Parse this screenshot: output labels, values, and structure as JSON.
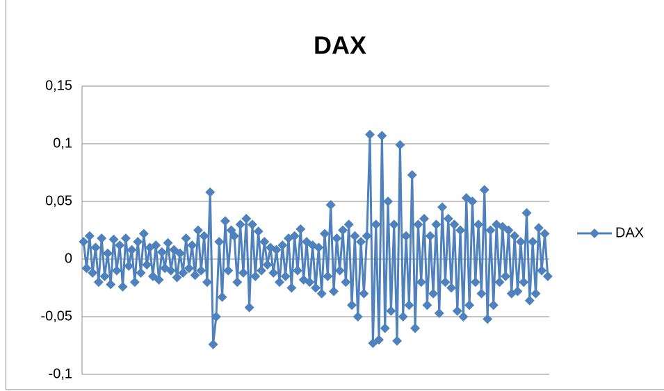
{
  "chart_data": {
    "type": "line",
    "title": "DAX",
    "ylim": [
      -0.1,
      0.15
    ],
    "yticks": [
      {
        "value": -0.1,
        "label": "-0,1"
      },
      {
        "value": -0.05,
        "label": "-0,05"
      },
      0,
      {
        "value": 0.05,
        "label": "0,05"
      },
      {
        "value": 0.1,
        "label": "0,1"
      },
      {
        "value": 0.15,
        "label": "0,15"
      }
    ],
    "grid": true,
    "legend": "right",
    "series": [
      {
        "name": "DAX",
        "color": "#4f81bd",
        "values": [
          0.015,
          -0.008,
          0.02,
          -0.012,
          0.01,
          -0.02,
          0.018,
          -0.015,
          0.005,
          -0.022,
          0.017,
          -0.01,
          0.012,
          -0.024,
          0.018,
          -0.006,
          0.008,
          -0.02,
          0.015,
          -0.012,
          0.022,
          -0.005,
          0.01,
          -0.015,
          0.012,
          -0.018,
          0.006,
          -0.008,
          0.014,
          -0.01,
          0.008,
          -0.016,
          0.005,
          -0.012,
          0.018,
          -0.008,
          0.012,
          -0.014,
          0.025,
          -0.01,
          0.02,
          -0.02,
          0.058,
          -0.074,
          -0.05,
          0.015,
          -0.033,
          0.033,
          -0.01,
          0.025,
          0.02,
          -0.02,
          0.03,
          -0.012,
          0.035,
          -0.042,
          0.03,
          -0.015,
          0.024,
          -0.01,
          0.015,
          -0.005,
          0.01,
          -0.012,
          0.008,
          -0.02,
          0.012,
          -0.015,
          0.018,
          -0.025,
          0.02,
          -0.01,
          0.026,
          -0.018,
          0.015,
          -0.02,
          0.012,
          -0.025,
          0.01,
          -0.03,
          0.022,
          -0.015,
          0.047,
          -0.028,
          0.018,
          -0.01,
          0.025,
          -0.02,
          0.03,
          -0.04,
          0.02,
          -0.05,
          0.015,
          -0.03,
          0.02,
          0.108,
          -0.073,
          0.03,
          -0.07,
          0.107,
          -0.06,
          0.05,
          -0.045,
          0.03,
          -0.071,
          0.099,
          -0.05,
          0.02,
          -0.04,
          0.073,
          -0.06,
          0.03,
          -0.02,
          0.035,
          -0.04,
          0.02,
          -0.03,
          0.03,
          -0.047,
          0.045,
          -0.02,
          0.035,
          -0.025,
          0.03,
          -0.045,
          0.025,
          -0.05,
          0.053,
          -0.04,
          0.05,
          -0.02,
          0.03,
          -0.03,
          0.06,
          -0.052,
          0.025,
          -0.04,
          0.03,
          -0.02,
          0.028,
          -0.015,
          0.025,
          -0.03,
          0.02,
          -0.028,
          0.015,
          -0.02,
          0.04,
          -0.036,
          0.015,
          -0.03,
          0.027,
          -0.01,
          0.022,
          -0.015
        ]
      }
    ]
  }
}
